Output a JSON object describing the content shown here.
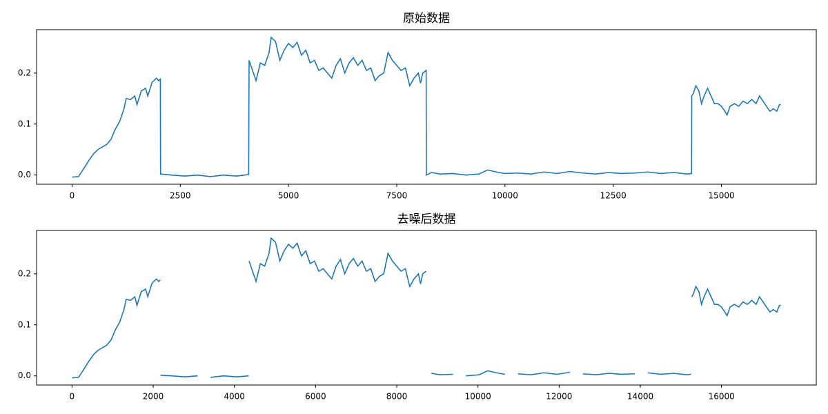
{
  "chart_data": [
    {
      "type": "line",
      "title": "原始数据",
      "color": "#1f77b4",
      "xlim": [
        -819,
        17191
      ],
      "ylim": [
        -0.018,
        0.285
      ],
      "xticks": [
        0,
        2500,
        5000,
        7500,
        10000,
        12500,
        15000
      ],
      "yticks": [
        {
          "value": 0,
          "label": "0.0"
        },
        0.1,
        0.2
      ],
      "x": [
        0,
        150,
        250,
        400,
        500,
        600,
        700,
        800,
        900,
        1000,
        1100,
        1200,
        1250,
        1350,
        1450,
        1500,
        1600,
        1700,
        1750,
        1850,
        1950,
        2000,
        2040,
        2045,
        2300,
        2600,
        2900,
        3200,
        3500,
        3800,
        4080,
        4090,
        4150,
        4250,
        4350,
        4450,
        4550,
        4600,
        4700,
        4800,
        4900,
        5000,
        5100,
        5200,
        5300,
        5400,
        5500,
        5600,
        5700,
        5800,
        5900,
        6000,
        6100,
        6200,
        6300,
        6400,
        6500,
        6600,
        6700,
        6800,
        6900,
        7000,
        7100,
        7200,
        7300,
        7400,
        7500,
        7600,
        7700,
        7800,
        7900,
        8000,
        8050,
        8100,
        8180,
        8185,
        8300,
        8500,
        8800,
        9100,
        9400,
        9600,
        9800,
        10000,
        10300,
        10600,
        10900,
        11200,
        11500,
        11800,
        12100,
        12400,
        12700,
        13000,
        13300,
        13600,
        13900,
        14200,
        14310,
        14315,
        14350,
        14410,
        14480,
        14540,
        14600,
        14680,
        14760,
        14840,
        14920,
        15000,
        15080,
        15130,
        15200,
        15300,
        15400,
        15500,
        15600,
        15700,
        15800,
        15880,
        15960,
        16040,
        16120,
        16200,
        16280,
        16340,
        16372
      ],
      "values": [
        -0.004,
        -0.003,
        0.01,
        0.03,
        0.042,
        0.05,
        0.055,
        0.06,
        0.07,
        0.09,
        0.105,
        0.13,
        0.15,
        0.148,
        0.155,
        0.138,
        0.165,
        0.17,
        0.155,
        0.182,
        0.19,
        0.185,
        0.188,
        0.002,
        0.0,
        -0.002,
        0.0,
        -0.003,
        0.0,
        -0.002,
        0.001,
        0.225,
        0.21,
        0.185,
        0.22,
        0.215,
        0.24,
        0.27,
        0.262,
        0.225,
        0.245,
        0.258,
        0.25,
        0.26,
        0.235,
        0.245,
        0.22,
        0.225,
        0.205,
        0.21,
        0.2,
        0.19,
        0.215,
        0.228,
        0.2,
        0.22,
        0.23,
        0.215,
        0.225,
        0.205,
        0.21,
        0.185,
        0.195,
        0.2,
        0.24,
        0.225,
        0.215,
        0.205,
        0.21,
        0.175,
        0.19,
        0.2,
        0.18,
        0.2,
        0.205,
        0.0,
        0.005,
        0.002,
        0.003,
        0.0,
        0.002,
        0.01,
        0.006,
        0.003,
        0.004,
        0.002,
        0.006,
        0.003,
        0.007,
        0.004,
        0.002,
        0.005,
        0.003,
        0.004,
        0.006,
        0.003,
        0.005,
        0.002,
        0.003,
        0.155,
        0.16,
        0.175,
        0.165,
        0.14,
        0.155,
        0.17,
        0.155,
        0.14,
        0.14,
        0.135,
        0.125,
        0.118,
        0.135,
        0.14,
        0.135,
        0.145,
        0.14,
        0.148,
        0.14,
        0.155,
        0.145,
        0.135,
        0.125,
        0.13,
        0.125,
        0.138,
        0.138
      ]
    },
    {
      "type": "line",
      "title": "去噪后数据",
      "color": "#1f77b4",
      "xlim": [
        -873,
        18334
      ],
      "ylim": [
        -0.018,
        0.285
      ],
      "xticks": [
        0,
        2000,
        4000,
        6000,
        8000,
        10000,
        12000,
        14000,
        16000
      ],
      "yticks": [
        {
          "value": 0,
          "label": "0.0"
        },
        0.1,
        0.2
      ],
      "x": [
        0,
        160,
        267,
        427,
        533,
        640,
        747,
        853,
        960,
        1067,
        1173,
        1280,
        1333,
        1440,
        1547,
        1600,
        1706,
        1813,
        1866,
        1973,
        2080,
        2133,
        2176,
        null,
        2181,
        2453,
        2773,
        3093,
        null,
        3413,
        3733,
        4053,
        4351,
        null,
        4362,
        4426,
        4533,
        4639,
        4746,
        4853,
        4906,
        5013,
        5119,
        5226,
        5333,
        5439,
        5546,
        5653,
        5759,
        5866,
        5972,
        6079,
        6186,
        6292,
        6399,
        6506,
        6612,
        6719,
        6826,
        6932,
        7039,
        7146,
        7252,
        7359,
        7466,
        7572,
        7679,
        7785,
        7892,
        7999,
        8105,
        8212,
        8319,
        8425,
        8532,
        8585,
        8639,
        8724,
        null,
        8852,
        9065,
        9385,
        null,
        9705,
        10025,
        10238,
        10452,
        10665,
        null,
        10985,
        11305,
        11625,
        11945,
        12265,
        null,
        12585,
        12905,
        13225,
        13545,
        13865,
        null,
        14184,
        14504,
        14824,
        15144,
        15250,
        null,
        15267,
        15304,
        15368,
        15443,
        15507,
        15571,
        15656,
        15742,
        15827,
        15912,
        15998,
        16083,
        16136,
        16211,
        16318,
        16424,
        16531,
        16637,
        16744,
        16851,
        16936,
        17021,
        17107,
        17192,
        17277,
        17363,
        17426,
        17461
      ],
      "values": [
        -0.004,
        -0.003,
        0.01,
        0.03,
        0.042,
        0.05,
        0.055,
        0.06,
        0.07,
        0.09,
        0.105,
        0.13,
        0.15,
        0.148,
        0.155,
        0.138,
        0.165,
        0.17,
        0.155,
        0.182,
        0.19,
        0.185,
        0.188,
        null,
        0.001,
        0.0,
        -0.002,
        0.0,
        null,
        -0.003,
        0.0,
        -0.002,
        0.0,
        null,
        0.225,
        0.21,
        0.185,
        0.22,
        0.215,
        0.24,
        0.27,
        0.262,
        0.225,
        0.245,
        0.258,
        0.25,
        0.26,
        0.235,
        0.245,
        0.22,
        0.225,
        0.205,
        0.21,
        0.2,
        0.19,
        0.215,
        0.228,
        0.2,
        0.22,
        0.23,
        0.215,
        0.225,
        0.205,
        0.21,
        0.185,
        0.195,
        0.2,
        0.24,
        0.225,
        0.215,
        0.205,
        0.21,
        0.175,
        0.19,
        0.2,
        0.18,
        0.2,
        0.205,
        null,
        0.005,
        0.002,
        0.003,
        null,
        0.0,
        0.002,
        0.01,
        0.006,
        0.003,
        null,
        0.004,
        0.002,
        0.006,
        0.003,
        0.007,
        null,
        0.004,
        0.002,
        0.005,
        0.003,
        0.004,
        null,
        0.006,
        0.003,
        0.005,
        0.002,
        0.003,
        null,
        0.155,
        0.16,
        0.175,
        0.165,
        0.14,
        0.155,
        0.17,
        0.155,
        0.14,
        0.14,
        0.135,
        0.125,
        0.118,
        0.135,
        0.14,
        0.135,
        0.145,
        0.14,
        0.148,
        0.14,
        0.155,
        0.145,
        0.135,
        0.125,
        0.13,
        0.125,
        0.138,
        0.138
      ]
    }
  ]
}
